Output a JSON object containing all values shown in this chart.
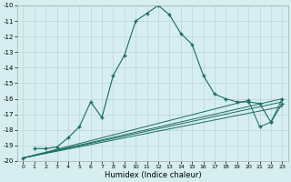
{
  "xlabel": "Humidex (Indice chaleur)",
  "bg_color": "#d6eef0",
  "grid_color": "#c0d8da",
  "line_color": "#1a6b5e",
  "xlim": [
    -0.5,
    23.5
  ],
  "ylim_bottom": -20,
  "ylim_top": -10,
  "yticks": [
    -20,
    -19,
    -18,
    -17,
    -16,
    -15,
    -14,
    -13,
    -12,
    -11,
    -10
  ],
  "xticks": [
    0,
    1,
    2,
    3,
    4,
    5,
    6,
    7,
    8,
    9,
    10,
    11,
    12,
    13,
    14,
    15,
    16,
    17,
    18,
    19,
    20,
    21,
    22,
    23
  ],
  "zigzag_x": [
    1,
    2,
    3,
    4,
    5,
    6,
    7,
    8,
    9,
    10,
    11,
    12,
    13,
    14,
    15,
    16,
    17,
    18,
    19,
    20,
    21,
    22,
    23
  ],
  "zigzag_y": [
    -19.2,
    -19.2,
    -19.1,
    -18.5,
    -17.8,
    -16.2,
    -17.2,
    -14.5,
    -13.2,
    -11.0,
    -10.5,
    -10.0,
    -10.6,
    -11.8,
    -12.5,
    -14.5,
    -15.7,
    -16.0,
    -16.2,
    -16.2,
    -16.3,
    -17.5,
    -16.3
  ],
  "line1_x": [
    0,
    23
  ],
  "line1_y": [
    -19.8,
    -16.0
  ],
  "line2_x": [
    0,
    23
  ],
  "line2_y": [
    -19.8,
    -16.2
  ],
  "line3_x": [
    0,
    23
  ],
  "line3_y": [
    -19.8,
    -16.5
  ],
  "line4_x": [
    0,
    20,
    21,
    22,
    23
  ],
  "line4_y": [
    -19.8,
    -16.1,
    -17.8,
    -17.5,
    -16.0
  ]
}
